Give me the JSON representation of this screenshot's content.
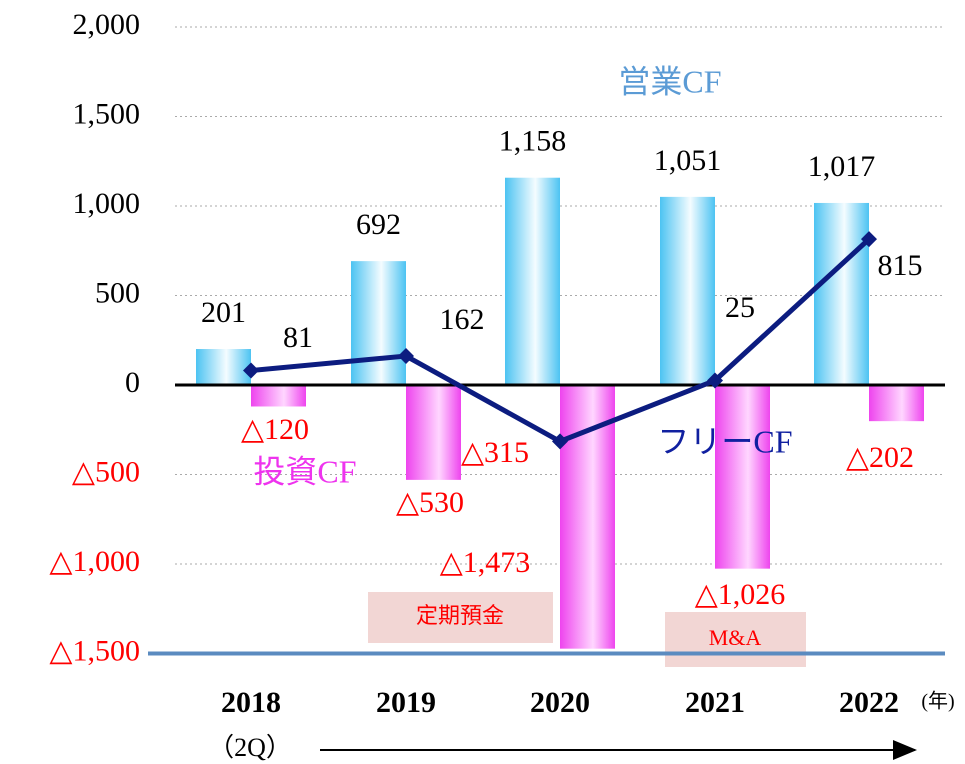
{
  "chart_data": {
    "type": "bar",
    "categories": [
      "2018",
      "2019",
      "2020",
      "2021",
      "2022"
    ],
    "category_note": "（2Q）",
    "unit_note": "(年)",
    "ylim": [
      -1500,
      2000
    ],
    "yticks": [
      {
        "value": 2000,
        "label": "2,000"
      },
      {
        "value": 1500,
        "label": "1,500"
      },
      {
        "value": 1000,
        "label": "1,000"
      },
      500,
      0,
      {
        "value": -500,
        "label": "△500"
      },
      {
        "value": -1000,
        "label": "△1,000"
      },
      {
        "value": -1500,
        "label": "△1,500"
      }
    ],
    "grid": true,
    "series": [
      {
        "name": "営業CF",
        "type": "bar",
        "color": "#4cc3f2",
        "values": [
          201,
          692,
          1158,
          1051,
          1017
        ],
        "value_labels": [
          "201",
          "692",
          "1,158",
          "1,051",
          "1,017"
        ]
      },
      {
        "name": "投資CF",
        "type": "bar",
        "color": "#ee44ee",
        "values": [
          -120,
          -530,
          -1473,
          -1026,
          -202
        ],
        "value_labels": [
          "△120",
          "△530",
          "△1,473",
          "△1,026",
          "△202"
        ]
      },
      {
        "name": "フリーCF",
        "type": "line",
        "color": "#0c1c80",
        "values": [
          81,
          162,
          -315,
          25,
          815
        ],
        "value_labels": [
          "81",
          "162",
          "△315",
          "25",
          "815"
        ]
      }
    ],
    "annotations": [
      "定期預金",
      "M&A"
    ]
  }
}
